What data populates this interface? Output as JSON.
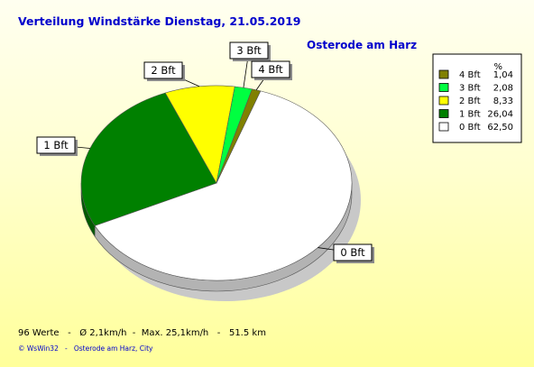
{
  "title": "Verteilung Windstärke  Dienstag, 21.05.2019",
  "subtitle": "Osterode am Harz",
  "chart_data": {
    "type": "pie",
    "unit": "%",
    "slices": [
      {
        "label": "0 Bft",
        "value": 62.5,
        "value_text": "62,50",
        "color": "#ffffff"
      },
      {
        "label": "1 Bft",
        "value": 26.04,
        "value_text": "26,04",
        "color": "#008000"
      },
      {
        "label": "2 Bft",
        "value": 8.33,
        "value_text": "8,33",
        "color": "#ffff00"
      },
      {
        "label": "3 Bft",
        "value": 2.08,
        "value_text": "2,08",
        "color": "#00ff40"
      },
      {
        "label": "4 Bft",
        "value": 1.04,
        "value_text": "1,04",
        "color": "#808000"
      }
    ],
    "legend": {
      "position": "top-right",
      "header": "%"
    }
  },
  "footer": {
    "stats": "96 Werte   -   Ø 2,1km/h  -  Max. 25,1km/h   -   51.5 km",
    "credit": "© WsWin32   -   Osterode am Harz, City"
  }
}
